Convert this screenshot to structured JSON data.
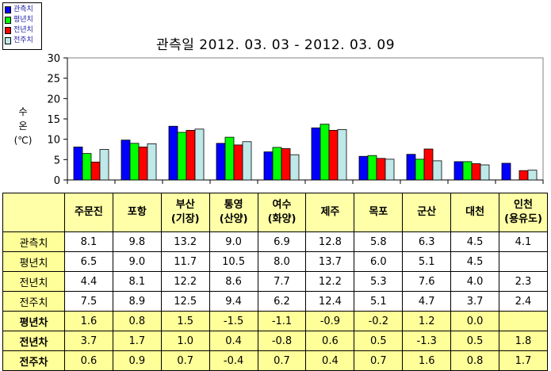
{
  "legend": [
    {
      "label": "관측치",
      "color": "#0000ff"
    },
    {
      "label": "평년치",
      "color": "#00ff00"
    },
    {
      "label": "전년치",
      "color": "#ff0000"
    },
    {
      "label": "전주치",
      "color": "#bfe8e8"
    }
  ],
  "chart_data": {
    "type": "bar",
    "title": "관측일 2012. 03. 03  -  2012. 03. 09",
    "ylabel_lines": [
      "수",
      "온",
      "(℃)"
    ],
    "ylim": [
      0,
      30
    ],
    "yticks": [
      0,
      5,
      10,
      15,
      20,
      25,
      30
    ],
    "grid": false,
    "legend_position": "top-left",
    "categories": [
      "주문진",
      "포항",
      "부산",
      "통영",
      "여수",
      "제주",
      "목포",
      "군산",
      "대천",
      "인천"
    ],
    "series": [
      {
        "name": "관측치",
        "color": "#0000ff",
        "values": [
          8.1,
          9.8,
          13.2,
          9.0,
          6.9,
          12.8,
          5.8,
          6.3,
          4.5,
          4.1
        ]
      },
      {
        "name": "평년치",
        "color": "#00ff00",
        "values": [
          6.5,
          9.0,
          11.7,
          10.5,
          8.0,
          13.7,
          6.0,
          5.1,
          4.5,
          null
        ]
      },
      {
        "name": "전년치",
        "color": "#ff0000",
        "values": [
          4.4,
          8.1,
          12.2,
          8.6,
          7.7,
          12.2,
          5.3,
          7.6,
          4.0,
          2.3
        ]
      },
      {
        "name": "전주치",
        "color": "#bfe8e8",
        "values": [
          7.5,
          8.9,
          12.5,
          9.4,
          6.2,
          12.4,
          5.1,
          4.7,
          3.7,
          2.4
        ]
      }
    ]
  },
  "table": {
    "columns": [
      [
        "주문진"
      ],
      [
        "포항"
      ],
      [
        "부산",
        "(기장)"
      ],
      [
        "통영",
        "(산양)"
      ],
      [
        "여수",
        "(화양)"
      ],
      [
        "제주"
      ],
      [
        "목포"
      ],
      [
        "군산"
      ],
      [
        "대천"
      ],
      [
        "인천",
        "(용유도)"
      ]
    ],
    "rows": [
      {
        "label": "관측치",
        "diff": false,
        "values": [
          "8.1",
          "9.8",
          "13.2",
          "9.0",
          "6.9",
          "12.8",
          "5.8",
          "6.3",
          "4.5",
          "4.1"
        ]
      },
      {
        "label": "평년치",
        "diff": false,
        "values": [
          "6.5",
          "9.0",
          "11.7",
          "10.5",
          "8.0",
          "13.7",
          "6.0",
          "5.1",
          "4.5",
          ""
        ]
      },
      {
        "label": "전년치",
        "diff": false,
        "values": [
          "4.4",
          "8.1",
          "12.2",
          "8.6",
          "7.7",
          "12.2",
          "5.3",
          "7.6",
          "4.0",
          "2.3"
        ]
      },
      {
        "label": "전주치",
        "diff": false,
        "values": [
          "7.5",
          "8.9",
          "12.5",
          "9.4",
          "6.2",
          "12.4",
          "5.1",
          "4.7",
          "3.7",
          "2.4"
        ]
      },
      {
        "label": "평년차",
        "diff": true,
        "values": [
          "1.6",
          "0.8",
          "1.5",
          "-1.5",
          "-1.1",
          "-0.9",
          "-0.2",
          "1.2",
          "0.0",
          ""
        ]
      },
      {
        "label": "전년차",
        "diff": true,
        "values": [
          "3.7",
          "1.7",
          "1.0",
          "0.4",
          "-0.8",
          "0.6",
          "0.5",
          "-1.3",
          "0.5",
          "1.8"
        ]
      },
      {
        "label": "전주차",
        "diff": true,
        "values": [
          "0.6",
          "0.9",
          "0.7",
          "-0.4",
          "0.7",
          "0.4",
          "0.7",
          "1.6",
          "0.8",
          "1.7"
        ]
      }
    ]
  }
}
